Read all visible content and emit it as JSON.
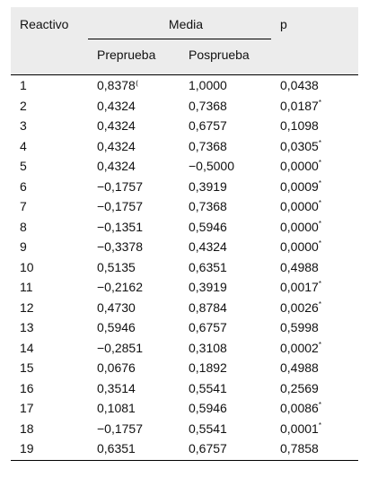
{
  "table": {
    "headers": {
      "reactivo": "Reactivo",
      "media": "Media",
      "p": "p",
      "preprueba": "Preprueba",
      "posprueba": "Posprueba"
    },
    "rows": [
      {
        "reactivo": "1",
        "pre": "0,8378⁽",
        "pos": "1,0000",
        "p": "0,0438",
        "sig": ""
      },
      {
        "reactivo": "2",
        "pre": "0,4324",
        "pos": "0,7368",
        "p": "0,0187",
        "sig": "*"
      },
      {
        "reactivo": "3",
        "pre": "0,4324",
        "pos": "0,6757",
        "p": "0,1098",
        "sig": ""
      },
      {
        "reactivo": "4",
        "pre": "0,4324",
        "pos": "0,7368",
        "p": "0,0305",
        "sig": "*"
      },
      {
        "reactivo": "5",
        "pre": "0,4324",
        "pos": "−0,5000",
        "p": "0,0000",
        "sig": "*"
      },
      {
        "reactivo": "6",
        "pre": "−0,1757",
        "pos": "0,3919",
        "p": "0,0009",
        "sig": "*"
      },
      {
        "reactivo": "7",
        "pre": "−0,1757",
        "pos": "0,7368",
        "p": "0,0000",
        "sig": "*"
      },
      {
        "reactivo": "8",
        "pre": "−0,1351",
        "pos": "0,5946",
        "p": "0,0000",
        "sig": "*"
      },
      {
        "reactivo": "9",
        "pre": "−0,3378",
        "pos": "0,4324",
        "p": "0,0000",
        "sig": "*"
      },
      {
        "reactivo": "10",
        "pre": "0,5135",
        "pos": "0,6351",
        "p": "0,4988",
        "sig": ""
      },
      {
        "reactivo": "11",
        "pre": "−0,2162",
        "pos": "0,3919",
        "p": "0,0017",
        "sig": "*"
      },
      {
        "reactivo": "12",
        "pre": "0,4730",
        "pos": "0,8784",
        "p": "0,0026",
        "sig": "*"
      },
      {
        "reactivo": "13",
        "pre": "0,5946",
        "pos": "0,6757",
        "p": "0,5998",
        "sig": ""
      },
      {
        "reactivo": "14",
        "pre": "−0,2851",
        "pos": "0,3108",
        "p": "0,0002",
        "sig": "*"
      },
      {
        "reactivo": "15",
        "pre": "0,0676",
        "pos": "0,1892",
        "p": "0,4988",
        "sig": ""
      },
      {
        "reactivo": "16",
        "pre": "0,3514",
        "pos": "0,5541",
        "p": "0,2569",
        "sig": ""
      },
      {
        "reactivo": "17",
        "pre": "0,1081",
        "pos": "0,5946",
        "p": "0,0086",
        "sig": "*"
      },
      {
        "reactivo": "18",
        "pre": "−0,1757",
        "pos": "0,5541",
        "p": "0,0001",
        "sig": "*"
      },
      {
        "reactivo": "19",
        "pre": "0,6351",
        "pos": "0,6757",
        "p": "0,7858",
        "sig": ""
      }
    ]
  }
}
